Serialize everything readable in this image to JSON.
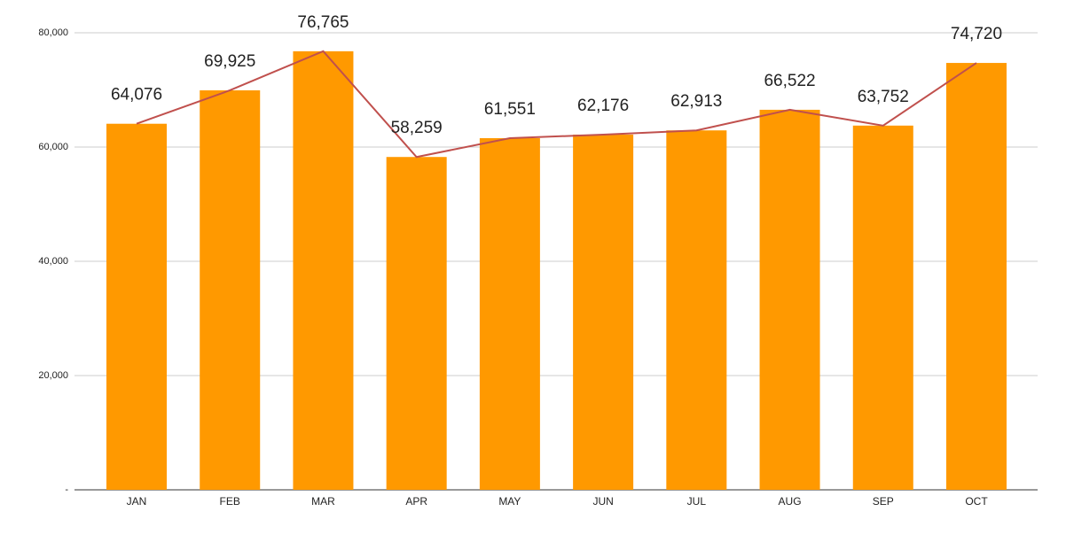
{
  "chart_data": {
    "type": "bar",
    "categories": [
      "JAN",
      "FEB",
      "MAR",
      "APR",
      "MAY",
      "JUN",
      "JUL",
      "AUG",
      "SEP",
      "OCT"
    ],
    "values": [
      64076,
      69925,
      76765,
      58259,
      61551,
      62176,
      62913,
      66522,
      63752,
      74720
    ],
    "value_labels": [
      "64,076",
      "69,925",
      "76,765",
      "58,259",
      "61,551",
      "62,176",
      "62,913",
      "66,522",
      "63,752",
      "74,720"
    ],
    "color": "#ff9900",
    "line_color": "#c0504d",
    "ylim": [
      0,
      80000
    ],
    "yticks": [
      {
        "value": 0,
        "label": "-"
      },
      {
        "value": 20000,
        "label": "20,000"
      },
      {
        "value": 40000,
        "label": "40,000"
      },
      {
        "value": 60000,
        "label": "60,000"
      },
      {
        "value": 80000,
        "label": "80,000"
      }
    ],
    "grid": true
  }
}
